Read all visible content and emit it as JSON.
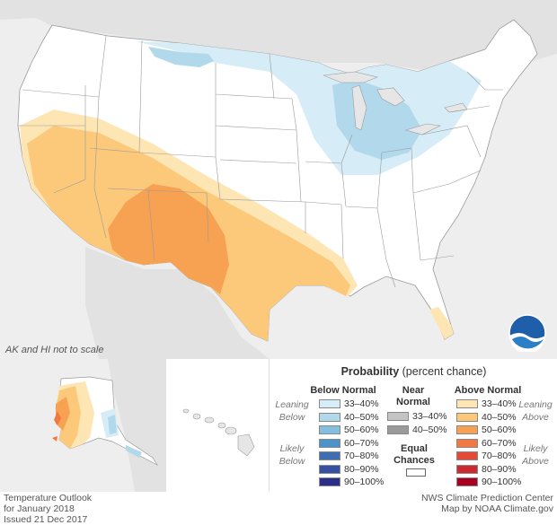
{
  "map": {
    "note": "AK and HI not to scale"
  },
  "legend": {
    "title_bold": "Probability",
    "title_rest": " (percent chance)",
    "below_header": "Below Normal",
    "near_header_1": "Near",
    "near_header_2": "Normal",
    "above_header": "Above Normal",
    "leaning_below_1": "Leaning",
    "leaning_below_2": "Below",
    "likely_below_1": "Likely",
    "likely_below_2": "Below",
    "leaning_above_1": "Leaning",
    "leaning_above_2": "Above",
    "likely_above_1": "Likely",
    "likely_above_2": "Above",
    "below": [
      {
        "label": "33–40%",
        "color": "#d6ecf6"
      },
      {
        "label": "40–50%",
        "color": "#b2d8ec"
      },
      {
        "label": "50–60%",
        "color": "#85bfdf"
      },
      {
        "label": "60–70%",
        "color": "#4e93c8"
      },
      {
        "label": "70–80%",
        "color": "#3e6db2"
      },
      {
        "label": "80–90%",
        "color": "#3651a2"
      },
      {
        "label": "90–100%",
        "color": "#2b2f8a"
      }
    ],
    "near": [
      {
        "label": "33–40%",
        "color": "#c4c4c4"
      },
      {
        "label": "40–50%",
        "color": "#9a9a9a"
      }
    ],
    "above": [
      {
        "label": "33–40%",
        "color": "#fde6b4"
      },
      {
        "label": "40–50%",
        "color": "#fcc97b"
      },
      {
        "label": "50–60%",
        "color": "#f7a153"
      },
      {
        "label": "60–70%",
        "color": "#f07843"
      },
      {
        "label": "70–80%",
        "color": "#e34b36"
      },
      {
        "label": "80–90%",
        "color": "#cc2a2e"
      },
      {
        "label": "90–100%",
        "color": "#a8001e"
      }
    ],
    "equal_1": "Equal",
    "equal_2": "Chances"
  },
  "footer": {
    "left_1": "Temperature Outlook",
    "left_2": "for January 2018",
    "left_3": "Issued 21 Dec 2017",
    "right_1": "NWS Climate Prediction Center",
    "right_2": "Map by NOAA Climate.gov"
  },
  "logo": {
    "text": "NOAA"
  }
}
